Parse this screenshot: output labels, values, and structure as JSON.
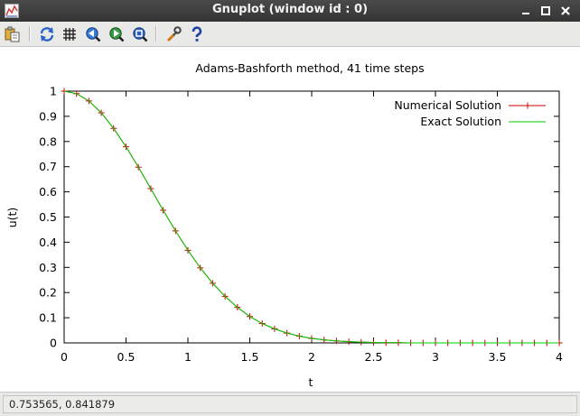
{
  "window": {
    "title": "Gnuplot (window id : 0)",
    "controls": [
      "minimize",
      "maximize",
      "close"
    ]
  },
  "toolbar": {
    "buttons": [
      {
        "icon": "copy-to-clipboard-icon"
      },
      {
        "icon": "replot-icon"
      },
      {
        "icon": "grid-icon"
      },
      {
        "icon": "previous-zoom-icon"
      },
      {
        "icon": "next-zoom-icon"
      },
      {
        "icon": "autoscale-icon"
      },
      {
        "icon": "settings-icon"
      },
      {
        "icon": "help-icon"
      }
    ]
  },
  "status": {
    "coords": "0.753565,  0.841879"
  },
  "colors": {
    "numerical": "#cc0000",
    "exact": "#00cc00"
  },
  "chart_data": {
    "type": "line",
    "title": "Adams-Bashforth method, 41 time steps",
    "xlabel": "t",
    "ylabel": "u(t)",
    "xlim": [
      0,
      4
    ],
    "ylim": [
      0,
      1
    ],
    "xticks": [
      "0",
      "0.5",
      "1",
      "1.5",
      "2",
      "2.5",
      "3",
      "3.5",
      "4"
    ],
    "yticks": [
      "0",
      "0.1",
      "0.2",
      "0.3",
      "0.4",
      "0.5",
      "0.6",
      "0.7",
      "0.8",
      "0.9",
      "1"
    ],
    "legend_position": "top-right",
    "grid": false,
    "series": [
      {
        "name": "Numerical Solution",
        "style": "linespoints",
        "marker": "plus",
        "color": "#cc0000",
        "x": [
          0.0,
          0.1,
          0.2,
          0.3,
          0.4,
          0.5,
          0.6,
          0.7,
          0.8,
          0.9,
          1.0,
          1.1,
          1.2,
          1.3,
          1.4,
          1.5,
          1.6,
          1.7,
          1.8,
          1.9,
          2.0,
          2.1,
          2.2,
          2.3,
          2.4,
          2.5,
          2.6,
          2.7,
          2.8,
          2.9,
          3.0,
          3.1,
          3.2,
          3.3,
          3.4,
          3.5,
          3.6,
          3.7,
          3.8,
          3.9,
          4.0
        ],
        "y": [
          1.0,
          0.99,
          0.961,
          0.914,
          0.852,
          0.779,
          0.698,
          0.613,
          0.527,
          0.445,
          0.368,
          0.298,
          0.237,
          0.185,
          0.141,
          0.105,
          0.077,
          0.056,
          0.039,
          0.027,
          0.018,
          0.012,
          0.008,
          0.005,
          0.003,
          0.002,
          0.001,
          0.001,
          0.0,
          0.0,
          0.0,
          0.0,
          0.0,
          0.0,
          0.0,
          0.0,
          0.0,
          0.0,
          0.0,
          0.0,
          0.0
        ]
      },
      {
        "name": "Exact Solution",
        "style": "lines",
        "color": "#00cc00",
        "x": [
          0.0,
          0.1,
          0.2,
          0.3,
          0.4,
          0.5,
          0.6,
          0.7,
          0.8,
          0.9,
          1.0,
          1.1,
          1.2,
          1.3,
          1.4,
          1.5,
          1.6,
          1.7,
          1.8,
          1.9,
          2.0,
          2.1,
          2.2,
          2.3,
          2.4,
          2.5,
          2.6,
          2.7,
          2.8,
          2.9,
          3.0,
          3.1,
          3.2,
          3.3,
          3.4,
          3.5,
          3.6,
          3.7,
          3.8,
          3.9,
          4.0
        ],
        "y": [
          1.0,
          0.99,
          0.961,
          0.914,
          0.852,
          0.779,
          0.698,
          0.613,
          0.527,
          0.445,
          0.368,
          0.298,
          0.237,
          0.185,
          0.141,
          0.105,
          0.077,
          0.056,
          0.039,
          0.027,
          0.018,
          0.012,
          0.008,
          0.005,
          0.003,
          0.002,
          0.001,
          0.001,
          0.0,
          0.0,
          0.0,
          0.0,
          0.0,
          0.0,
          0.0,
          0.0,
          0.0,
          0.0,
          0.0,
          0.0,
          0.0
        ]
      }
    ]
  }
}
